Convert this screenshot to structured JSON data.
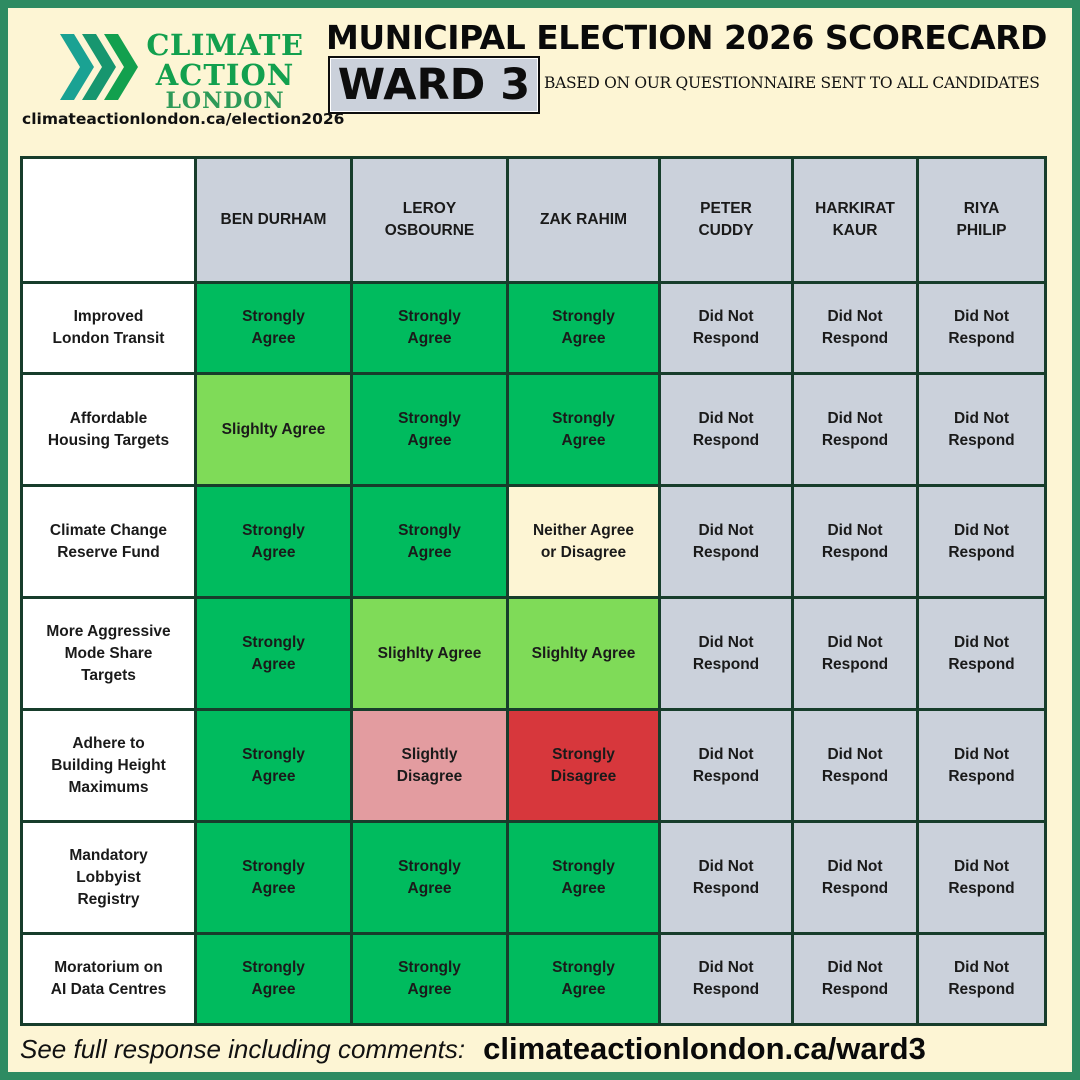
{
  "header": {
    "logo": {
      "line1": "CLIMATE",
      "line2": "ACTION",
      "line3": "LONDON"
    },
    "site_url": "climateactionlondon.ca/election2026",
    "title": "MUNICIPAL ELECTION 2026 SCORECARD",
    "ward": "WARD 3",
    "subtitle": "BASED ON OUR QUESTIONNAIRE SENT TO ALL CANDIDATES"
  },
  "colors": {
    "strongly_agree": "#00bb5e",
    "slightly_agree": "#7fdb58",
    "neither": "#fdf5d4",
    "slightly_disagree": "#e39ca0",
    "strongly_disagree": "#d7373c",
    "did_not_respond": "#cbd1db",
    "logo_green": "#12a04e",
    "logo_teal": "#1aa293"
  },
  "candidates": [
    {
      "line1": "BEN DURHAM",
      "line2": ""
    },
    {
      "line1": "LEROY",
      "line2": "OSBOURNE"
    },
    {
      "line1": "ZAK RAHIM",
      "line2": ""
    },
    {
      "line1": "PETER",
      "line2": "CUDDY"
    },
    {
      "line1": "HARKIRAT",
      "line2": "KAUR"
    },
    {
      "line1": "RIYA",
      "line2": "PHILIP"
    }
  ],
  "issues": [
    {
      "label": [
        "Improved",
        "London Transit"
      ],
      "responses": [
        [
          "Strongly",
          "Agree"
        ],
        [
          "Strongly",
          "Agree"
        ],
        [
          "Strongly",
          "Agree"
        ],
        [
          "Did Not",
          "Respond"
        ],
        [
          "Did Not",
          "Respond"
        ],
        [
          "Did Not",
          "Respond"
        ]
      ]
    },
    {
      "label": [
        "Affordable",
        "Housing Targets"
      ],
      "responses": [
        [
          "Slighlty Agree",
          ""
        ],
        [
          "Strongly",
          "Agree"
        ],
        [
          "Strongly",
          "Agree"
        ],
        [
          "Did Not",
          "Respond"
        ],
        [
          "Did Not",
          "Respond"
        ],
        [
          "Did Not",
          "Respond"
        ]
      ]
    },
    {
      "label": [
        "Climate Change",
        "Reserve Fund"
      ],
      "responses": [
        [
          "Strongly",
          "Agree"
        ],
        [
          "Strongly",
          "Agree"
        ],
        [
          "Neither Agree",
          "or Disagree"
        ],
        [
          "Did Not",
          "Respond"
        ],
        [
          "Did Not",
          "Respond"
        ],
        [
          "Did Not",
          "Respond"
        ]
      ]
    },
    {
      "label": [
        "More Aggressive",
        "Mode Share",
        "Targets"
      ],
      "responses": [
        [
          "Strongly",
          "Agree"
        ],
        [
          "Slighlty Agree",
          ""
        ],
        [
          "Slighlty Agree",
          ""
        ],
        [
          "Did Not",
          "Respond"
        ],
        [
          "Did Not",
          "Respond"
        ],
        [
          "Did Not",
          "Respond"
        ]
      ]
    },
    {
      "label": [
        "Adhere to",
        "Building Height",
        "Maximums"
      ],
      "responses": [
        [
          "Strongly",
          "Agree"
        ],
        [
          "Slightly",
          "Disagree"
        ],
        [
          "Strongly",
          "Disagree"
        ],
        [
          "Did Not",
          "Respond"
        ],
        [
          "Did Not",
          "Respond"
        ],
        [
          "Did Not",
          "Respond"
        ]
      ]
    },
    {
      "label": [
        "Mandatory",
        "Lobbyist",
        "Registry"
      ],
      "responses": [
        [
          "Strongly",
          "Agree"
        ],
        [
          "Strongly",
          "Agree"
        ],
        [
          "Strongly",
          "Agree"
        ],
        [
          "Did Not",
          "Respond"
        ],
        [
          "Did Not",
          "Respond"
        ],
        [
          "Did Not",
          "Respond"
        ]
      ]
    },
    {
      "label": [
        "Moratorium on",
        "AI Data Centres"
      ],
      "responses": [
        [
          "Strongly",
          "Agree"
        ],
        [
          "Strongly",
          "Agree"
        ],
        [
          "Strongly",
          "Agree"
        ],
        [
          "Did Not",
          "Respond"
        ],
        [
          "Did Not",
          "Respond"
        ],
        [
          "Did Not",
          "Respond"
        ]
      ]
    }
  ],
  "footer": {
    "text": "See full response including comments:",
    "url": "climateactionlondon.ca/ward3"
  }
}
